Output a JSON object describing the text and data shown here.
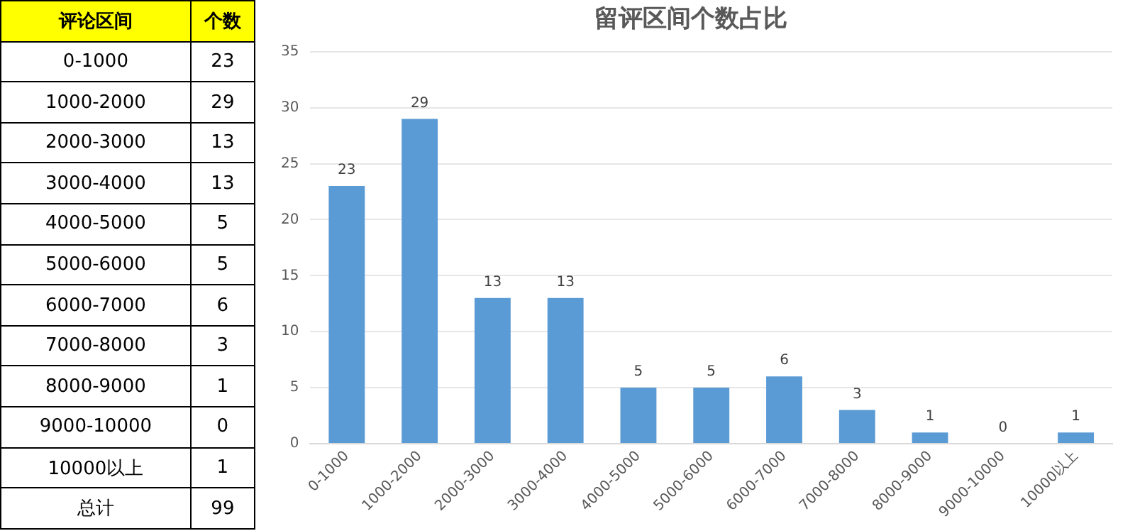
{
  "chart_data": [
    {
      "type": "other",
      "annotations": [
        "评论区间",
        "个数"
      ],
      "categories": [
        "0-1000",
        "1000-2000",
        "2000-3000",
        "3000-4000",
        "4000-5000",
        "5000-6000",
        "6000-7000",
        "7000-8000",
        "8000-9000",
        "9000-10000",
        "10000以上",
        "总计"
      ],
      "values": [
        23,
        29,
        13,
        13,
        5,
        5,
        6,
        3,
        1,
        0,
        1,
        99
      ],
      "color": "#ffff00",
      "data_labels": true
    },
    {
      "type": "bar",
      "title": "留评区间个数占比",
      "categories": [
        "0-1000",
        "1000-2000",
        "2000-3000",
        "3000-4000",
        "4000-5000",
        "5000-6000",
        "6000-7000",
        "7000-8000",
        "8000-9000",
        "9000-10000",
        "10000以上"
      ],
      "values": [
        23,
        29,
        13,
        13,
        5,
        5,
        6,
        3,
        1,
        0,
        1
      ],
      "color": "#5b9bd5",
      "ylim": [
        0,
        35
      ],
      "yticks": [
        0,
        5,
        10,
        15,
        20,
        25,
        30,
        35
      ],
      "grid": "y",
      "data_labels": true
    }
  ]
}
